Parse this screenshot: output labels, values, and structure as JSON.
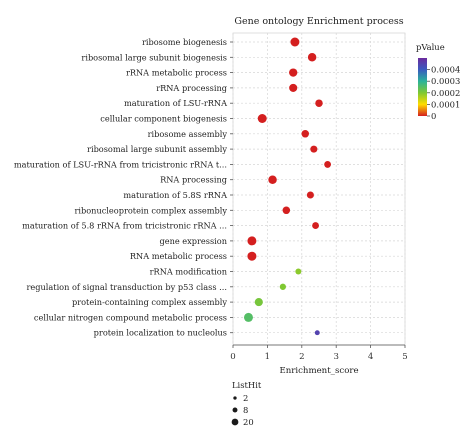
{
  "chart_data": {
    "type": "scatter",
    "title": "Gene ontology Enrichment process",
    "xlabel": "Enrichment_score",
    "ylabel": "",
    "xlim": [
      0,
      5
    ],
    "xticks": [
      "0",
      "1",
      "2",
      "3",
      "4",
      "5"
    ],
    "grid": true,
    "points": [
      {
        "term": "ribosome biogenesis",
        "x": 1.8,
        "pvalue": 0.0,
        "listhit": 20
      },
      {
        "term": "ribosomal large subunit biogenesis",
        "x": 2.3,
        "pvalue": 0.0,
        "listhit": 17
      },
      {
        "term": "rRNA metabolic process",
        "x": 1.75,
        "pvalue": 0.0,
        "listhit": 16
      },
      {
        "term": "rRNA processing",
        "x": 1.75,
        "pvalue": 0.0,
        "listhit": 15
      },
      {
        "term": "maturation of LSU-rRNA",
        "x": 2.5,
        "pvalue": 0.0,
        "listhit": 12
      },
      {
        "term": "cellular component biogenesis",
        "x": 0.85,
        "pvalue": 0.0,
        "listhit": 20
      },
      {
        "term": "ribosome assembly",
        "x": 2.1,
        "pvalue": 0.0,
        "listhit": 12
      },
      {
        "term": "ribosomal large subunit assembly",
        "x": 2.35,
        "pvalue": 0.0,
        "listhit": 10
      },
      {
        "term": "maturation of LSU-rRNA from tricistronic rRNA t...",
        "x": 2.75,
        "pvalue": 0.0,
        "listhit": 9
      },
      {
        "term": "RNA processing",
        "x": 1.15,
        "pvalue": 0.0,
        "listhit": 17
      },
      {
        "term": "maturation of 5.8S rRNA",
        "x": 2.25,
        "pvalue": 0.0,
        "listhit": 10
      },
      {
        "term": "ribonucleoprotein complex assembly",
        "x": 1.55,
        "pvalue": 0.0,
        "listhit": 12
      },
      {
        "term": "maturation of 5.8 rRNA from tricistronic rRNA ...",
        "x": 2.4,
        "pvalue": 0.0,
        "listhit": 9
      },
      {
        "term": "gene expression",
        "x": 0.55,
        "pvalue": 0.0,
        "listhit": 20
      },
      {
        "term": "RNA metabolic process",
        "x": 0.55,
        "pvalue": 0.0,
        "listhit": 20
      },
      {
        "term": "rRNA modification",
        "x": 1.9,
        "pvalue": 0.00019,
        "listhit": 6
      },
      {
        "term": "regulation of signal transduction by p53 class ...",
        "x": 1.45,
        "pvalue": 0.0002,
        "listhit": 7
      },
      {
        "term": "protein-containing complex assembly",
        "x": 0.75,
        "pvalue": 0.00021,
        "listhit": 15
      },
      {
        "term": "cellular nitrogen compound metabolic process",
        "x": 0.45,
        "pvalue": 0.00025,
        "listhit": 20
      },
      {
        "term": "protein localization to nucleolus",
        "x": 2.45,
        "pvalue": 0.00045,
        "listhit": 3
      }
    ],
    "color_legend": {
      "title": "pValue",
      "ticks": [
        "0.0004",
        "0.0003",
        "0.0002",
        "0.0001",
        "0"
      ],
      "stops": [
        "#6b2a9e",
        "#3a5bbf",
        "#2bb39a",
        "#7fc832",
        "#ffdd00",
        "#d41f1f"
      ]
    },
    "size_legend": {
      "title": "ListHit",
      "labels": [
        "2",
        "8",
        "20"
      ]
    }
  }
}
